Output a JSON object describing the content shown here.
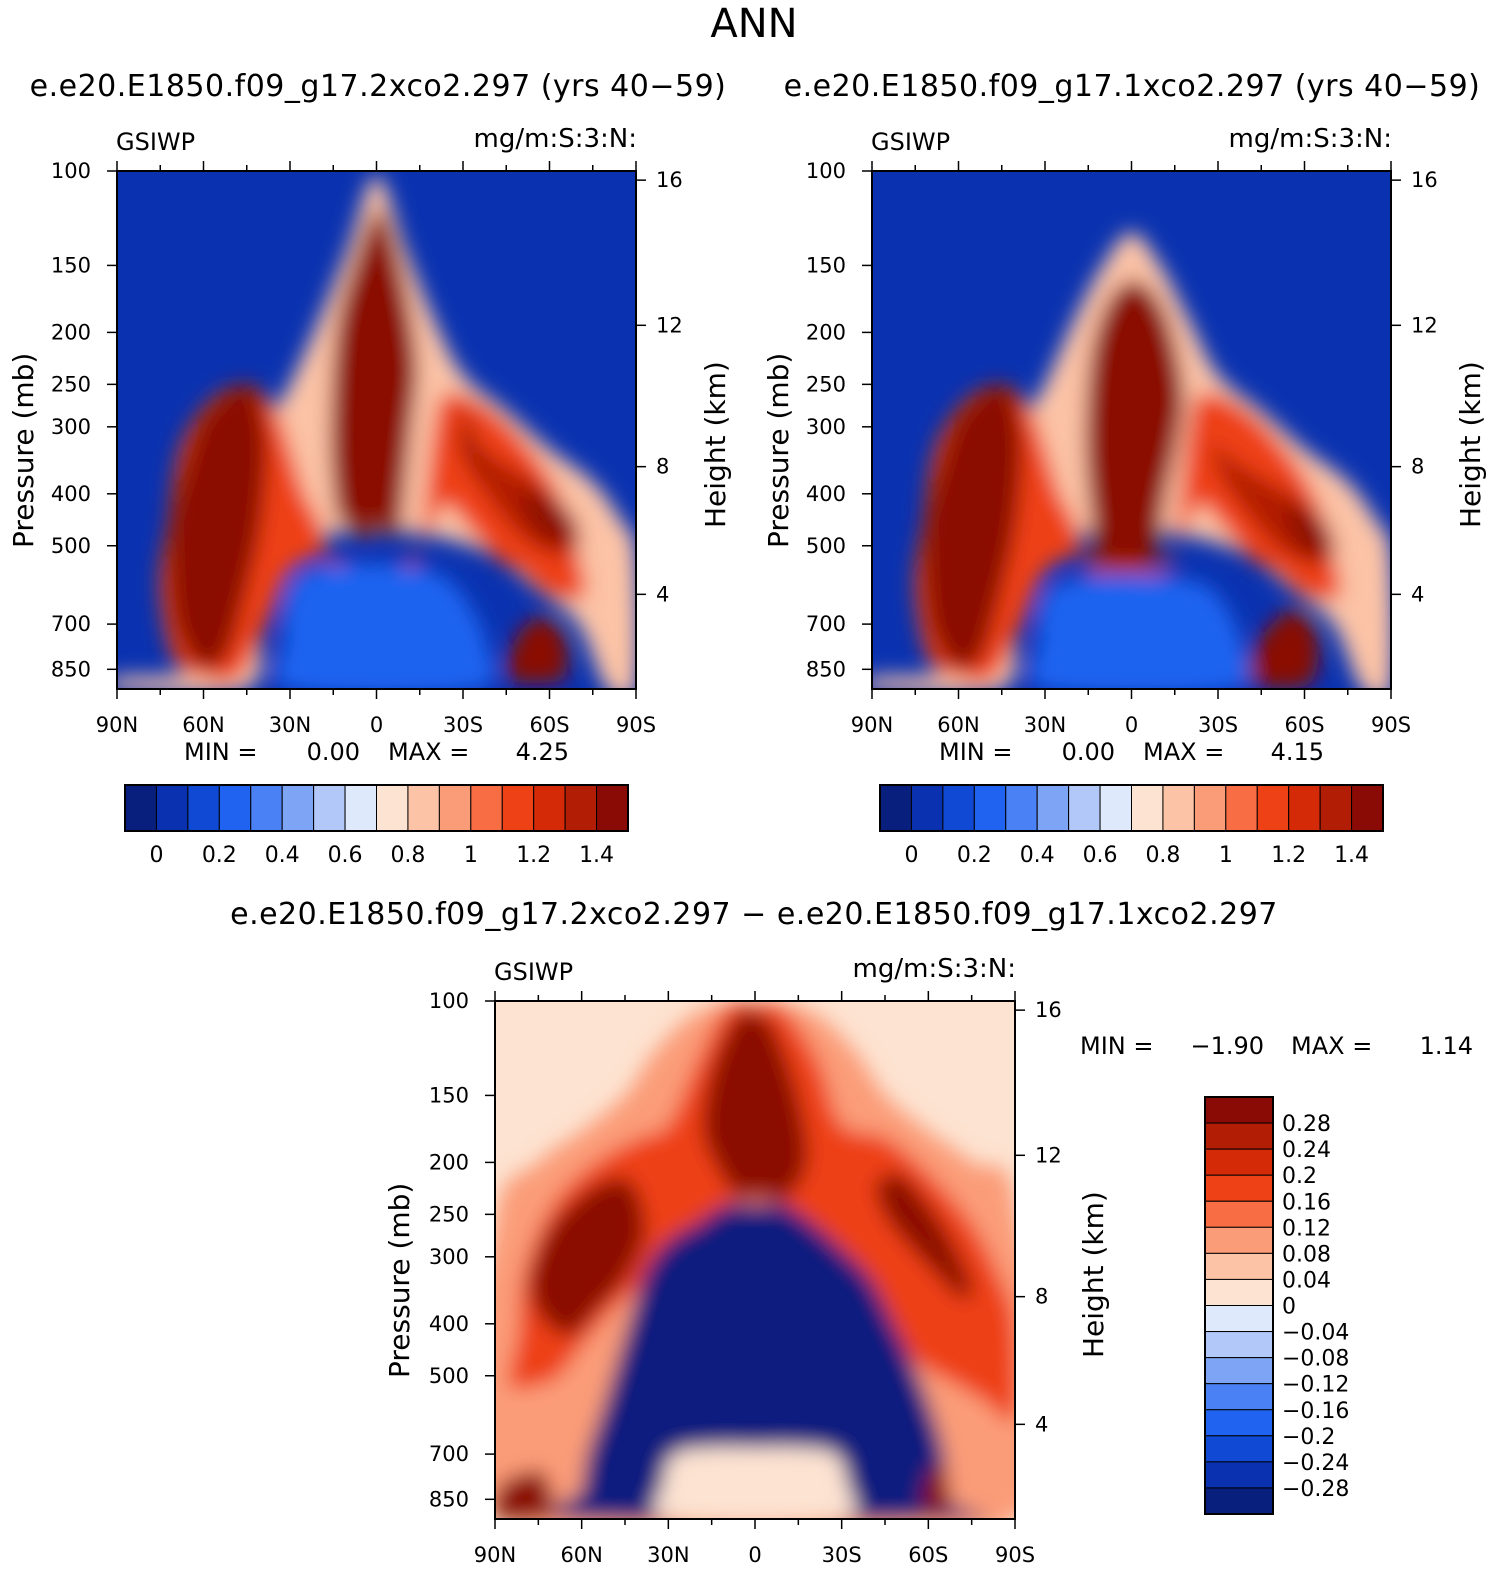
{
  "figure": {
    "title": "ANN",
    "diff_title": "e.e20.E1850.f09_g17.2xco2.297 − e.e20.E1850.f09_g17.1xco2.297"
  },
  "panels": [
    {
      "id": "left",
      "case": "e.e20.E1850.f09_g17.2xco2.297 (yrs 40−59)",
      "variable": "GSIWP",
      "units": "mg/m:S:3:N:",
      "min_label": "MIN =",
      "min_value": "0.00",
      "max_label": "MAX =",
      "max_value": "4.25",
      "ylabel": "Pressure (mb)",
      "ylabel_right": "Height (km)"
    },
    {
      "id": "right",
      "case": "e.e20.E1850.f09_g17.1xco2.297 (yrs 40−59)",
      "variable": "GSIWP",
      "units": "mg/m:S:3:N:",
      "min_label": "MIN =",
      "min_value": "0.00",
      "max_label": "MAX =",
      "max_value": "4.15",
      "ylabel": "Pressure (mb)",
      "ylabel_right": "Height (km)"
    },
    {
      "id": "diff",
      "variable": "GSIWP",
      "units": "mg/m:S:3:N:",
      "min_label": "MIN =",
      "min_value": "−1.90",
      "max_label": "MAX =",
      "max_value": "1.14",
      "ylabel": "Pressure (mb)",
      "ylabel_right": "Height (km)"
    }
  ],
  "chart_data": {
    "type": "heatmap",
    "x_ticks": [
      "90N",
      "60N",
      "30N",
      "0",
      "30S",
      "60S",
      "90S"
    ],
    "x_range": [
      90,
      -90
    ],
    "p_ticks": [
      100,
      150,
      200,
      250,
      300,
      400,
      500,
      700,
      850
    ],
    "p_range": [
      100,
      925
    ],
    "height_ticks": [
      16,
      12,
      8,
      4
    ],
    "height_tick_pressures": [
      104,
      194,
      356,
      616
    ],
    "abs_levels": [
      "0",
      "0.2",
      "0.4",
      "0.6",
      "0.8",
      "1",
      "1.2",
      "1.4"
    ],
    "abs_colors": [
      "#081f7e",
      "#0a32b0",
      "#0f49d4",
      "#1f63f0",
      "#4a82f5",
      "#7ea4f5",
      "#b2c8f8",
      "#deeafb",
      "#fde3d1",
      "#fcc3a6",
      "#fb9c78",
      "#f96d44",
      "#ee4115",
      "#d52a08",
      "#b21d06",
      "#8a0a05"
    ],
    "diff_levels": [
      "0.28",
      "0.24",
      "0.2",
      "0.16",
      "0.12",
      "0.08",
      "0.04",
      "0",
      "−0.04",
      "−0.08",
      "−0.12",
      "−0.16",
      "−0.2",
      "−0.24",
      "−0.28"
    ],
    "diff_colors": [
      "#8a0a05",
      "#b21d06",
      "#d52a08",
      "#ee4115",
      "#f96d44",
      "#fb9c78",
      "#fcc3a6",
      "#fde3d1",
      "#deeafb",
      "#b2c8f8",
      "#7ea4f5",
      "#4a82f5",
      "#1f63f0",
      "#0f49d4",
      "#0a32b0",
      "#081f7e"
    ]
  }
}
